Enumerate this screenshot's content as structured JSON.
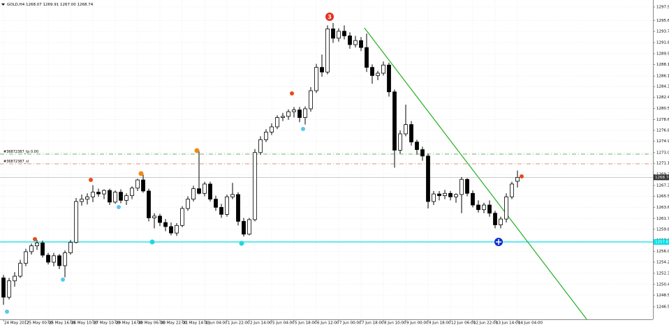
{
  "chart_data": {
    "type": "candlestick",
    "title": "GOLD,H4 1268.07 1269.91 1267.00 1268.74",
    "categories": [
      "24 May 2017",
      null,
      null,
      null,
      "25 May 00:00",
      null,
      null,
      null,
      "25 May 16:00",
      null,
      null,
      null,
      "26 May 10:00",
      null,
      null,
      null,
      "27 May 10:00",
      null,
      null,
      null,
      "29 May 14:00",
      null,
      null,
      null,
      "30 May 06:00",
      null,
      null,
      null,
      "30 May 22:00",
      null,
      null,
      null,
      "31 May 14:00",
      null,
      null,
      null,
      "1 Jun 04:00",
      null,
      null,
      null,
      "1 Jun 22:00",
      null,
      null,
      null,
      "2 Jun 14:00",
      null,
      null,
      null,
      "5 Jun 04:00",
      null,
      null,
      null,
      "5 Jun 18:00",
      null,
      null,
      null,
      "6 Jun 12:00",
      null,
      null,
      null,
      "7 Jun 00:00",
      null,
      null,
      null,
      "7 Jun 18:00",
      null,
      null,
      null,
      "8 Jun 10:00",
      null,
      null,
      null,
      "9 Jun 00:00",
      null,
      null,
      null,
      "9 Jun 18:00",
      null,
      null,
      null,
      "12 Jun 06:00",
      null,
      null,
      null,
      "12 Jun 22:00",
      null,
      null,
      null,
      "13 Jun 14:00",
      null,
      null,
      null,
      "14 Jun 04:00"
    ],
    "values": [
      [
        1251.5,
        1252.0,
        1246.9,
        1248.2
      ],
      [
        1248.2,
        1251.5,
        1247.8,
        1251.0
      ],
      [
        1251.0,
        1252.5,
        1250.0,
        1251.8
      ],
      [
        1251.8,
        1254.6,
        1251.5,
        1254.0
      ],
      [
        1254.0,
        1256.5,
        1253.5,
        1256.0
      ],
      [
        1256.0,
        1257.4,
        1255.5,
        1257.0
      ],
      [
        1257.0,
        1258.0,
        1256.3,
        1257.5
      ],
      [
        1257.5,
        1257.9,
        1255.0,
        1255.4
      ],
      [
        1255.4,
        1255.8,
        1253.8,
        1254.2
      ],
      [
        1254.2,
        1255.8,
        1253.5,
        1255.3
      ],
      [
        1255.3,
        1255.6,
        1253.0,
        1253.6
      ],
      [
        1253.6,
        1256.2,
        1251.6,
        1255.8
      ],
      [
        1255.8,
        1258.0,
        1255.5,
        1257.6
      ],
      [
        1257.6,
        1265.2,
        1257.4,
        1264.6
      ],
      [
        1264.6,
        1265.8,
        1263.9,
        1265.0
      ],
      [
        1265.0,
        1266.0,
        1264.1,
        1265.4
      ],
      [
        1265.4,
        1267.4,
        1264.5,
        1266.2
      ],
      [
        1266.2,
        1266.8,
        1265.4,
        1265.9
      ],
      [
        1265.9,
        1266.7,
        1265.0,
        1266.5
      ],
      [
        1266.5,
        1266.8,
        1264.0,
        1264.5
      ],
      [
        1264.5,
        1266.5,
        1264.2,
        1266.2
      ],
      [
        1266.2,
        1266.7,
        1264.3,
        1264.8
      ],
      [
        1264.8,
        1266.0,
        1264.0,
        1265.6
      ],
      [
        1265.6,
        1267.2,
        1265.0,
        1266.9
      ],
      [
        1266.9,
        1268.5,
        1266.4,
        1268.3
      ],
      [
        1268.3,
        1269.2,
        1266.1,
        1266.4
      ],
      [
        1266.4,
        1266.8,
        1261.2,
        1261.8
      ],
      [
        1261.8,
        1262.6,
        1260.0,
        1262.1
      ],
      [
        1262.1,
        1262.5,
        1260.4,
        1261.0
      ],
      [
        1261.0,
        1261.6,
        1259.5,
        1260.3
      ],
      [
        1260.3,
        1261.0,
        1258.8,
        1259.2
      ],
      [
        1259.2,
        1260.9,
        1258.7,
        1260.5
      ],
      [
        1260.5,
        1263.8,
        1260.2,
        1263.4
      ],
      [
        1263.4,
        1265.5,
        1263.0,
        1265.0
      ],
      [
        1265.0,
        1267.3,
        1264.6,
        1266.8
      ],
      [
        1266.8,
        1273.3,
        1265.8,
        1266.0
      ],
      [
        1266.0,
        1268.0,
        1265.5,
        1267.6
      ],
      [
        1267.6,
        1268.0,
        1264.6,
        1265.0
      ],
      [
        1265.0,
        1265.6,
        1263.0,
        1263.6
      ],
      [
        1263.6,
        1264.2,
        1261.8,
        1262.4
      ],
      [
        1262.4,
        1265.8,
        1262.0,
        1265.4
      ],
      [
        1265.4,
        1267.8,
        1265.0,
        1265.8
      ],
      [
        1265.8,
        1266.2,
        1260.5,
        1261.2
      ],
      [
        1261.2,
        1261.8,
        1258.6,
        1259.0
      ],
      [
        1259.0,
        1261.8,
        1258.8,
        1261.5
      ],
      [
        1261.5,
        1273.6,
        1261.2,
        1273.0
      ],
      [
        1273.0,
        1275.8,
        1272.6,
        1275.2
      ],
      [
        1275.2,
        1277.0,
        1274.8,
        1276.5
      ],
      [
        1276.5,
        1278.0,
        1276.0,
        1277.4
      ],
      [
        1277.4,
        1279.4,
        1277.0,
        1279.0
      ],
      [
        1279.0,
        1279.8,
        1278.4,
        1279.2
      ],
      [
        1279.2,
        1280.4,
        1278.6,
        1280.0
      ],
      [
        1280.0,
        1280.8,
        1279.0,
        1280.3
      ],
      [
        1280.3,
        1280.8,
        1278.2,
        1279.0
      ],
      [
        1279.0,
        1280.9,
        1277.8,
        1280.5
      ],
      [
        1280.5,
        1284.2,
        1280.0,
        1283.6
      ],
      [
        1283.6,
        1288.2,
        1283.2,
        1287.6
      ],
      [
        1287.6,
        1289.8,
        1286.0,
        1286.8
      ],
      [
        1286.8,
        1294.8,
        1286.4,
        1294.2
      ],
      [
        1294.2,
        1295.2,
        1291.8,
        1292.6
      ],
      [
        1292.6,
        1294.3,
        1292.0,
        1293.8
      ],
      [
        1293.8,
        1294.8,
        1292.4,
        1293.0
      ],
      [
        1293.0,
        1293.6,
        1290.8,
        1291.5
      ],
      [
        1291.5,
        1293.0,
        1291.0,
        1292.2
      ],
      [
        1292.2,
        1292.8,
        1290.4,
        1291.0
      ],
      [
        1291.0,
        1293.4,
        1286.8,
        1287.6
      ],
      [
        1287.6,
        1288.1,
        1284.8,
        1286.2
      ],
      [
        1286.2,
        1287.0,
        1285.4,
        1286.6
      ],
      [
        1286.6,
        1288.6,
        1286.2,
        1288.0
      ],
      [
        1288.0,
        1288.4,
        1282.6,
        1283.4
      ],
      [
        1283.4,
        1283.8,
        1270.4,
        1273.4
      ],
      [
        1273.4,
        1276.8,
        1272.8,
        1276.2
      ],
      [
        1276.2,
        1281.2,
        1275.8,
        1277.8
      ],
      [
        1277.8,
        1278.4,
        1274.2,
        1274.8
      ],
      [
        1274.8,
        1275.2,
        1272.6,
        1273.5
      ],
      [
        1273.5,
        1274.0,
        1271.6,
        1272.4
      ],
      [
        1272.4,
        1272.8,
        1263.4,
        1264.6
      ],
      [
        1264.6,
        1266.4,
        1264.0,
        1265.9
      ],
      [
        1265.9,
        1266.4,
        1264.8,
        1265.6
      ],
      [
        1265.6,
        1266.6,
        1265.0,
        1266.0
      ],
      [
        1266.0,
        1266.4,
        1264.8,
        1265.4
      ],
      [
        1265.4,
        1266.0,
        1264.4,
        1265.8
      ],
      [
        1265.8,
        1268.8,
        1262.6,
        1268.4
      ],
      [
        1268.4,
        1268.6,
        1265.5,
        1266.0
      ],
      [
        1266.0,
        1266.5,
        1263.6,
        1264.0
      ],
      [
        1264.0,
        1264.8,
        1262.7,
        1263.2
      ],
      [
        1263.2,
        1264.4,
        1262.6,
        1264.0
      ],
      [
        1264.0,
        1264.8,
        1262.0,
        1262.6
      ],
      [
        1262.6,
        1263.0,
        1260.0,
        1260.6
      ],
      [
        1260.6,
        1262.0,
        1260.0,
        1261.6
      ],
      [
        1261.6,
        1266.0,
        1261.0,
        1265.4
      ],
      [
        1265.4,
        1268.0,
        1265.0,
        1267.6
      ],
      [
        1268.07,
        1269.91,
        1267.0,
        1268.74
      ]
    ],
    "ylim": [
      1244.4,
      1299.15
    ],
    "yticks": [
      {
        "value": 1297.95,
        "label": "1297.95"
      },
      1295.65,
      1293.75,
      1291.85,
      1289.95,
      {
        "value": 1288.1,
        "label": "1288.10"
      },
      {
        "value": 1286.1,
        "label": "1286.10"
      },
      {
        "value": 1284.3,
        "label": "1284.30"
      },
      1282.45,
      1280.55,
      1278.65,
      {
        "value": 1276.8,
        "label": "1276.80"
      },
      1274.95,
      {
        "value": 1273.0,
        "label": "1273.00"
      },
      1271.15,
      1269.25,
      1267.35,
      {
        "value": 1265.5,
        "label": "1265.50"
      },
      {
        "value": 1263.6,
        "label": "1263.60"
      },
      {
        "value": 1261.7,
        "label": "1261.70"
      },
      1259.85,
      1257.95,
      1256.05,
      {
        "value": 1254.2,
        "label": "1254.20"
      },
      {
        "value": 1252.3,
        "label": "1252.30"
      },
      {
        "value": 1250.4,
        "label": "1250.40"
      },
      1248.55,
      1246.55
    ],
    "grid": true,
    "up_color": "#ffffff",
    "down_color": "#000000",
    "levels": [
      {
        "label": "#36872387_tp 0.00",
        "value": 1272.73,
        "color": "#3a9a3a"
      },
      {
        "label": "#36872387_sl",
        "value": 1271.06,
        "color": "#e07050"
      },
      {
        "value": 1257.67,
        "color": "#00e0e8"
      }
    ],
    "trendline": {
      "x": [
        64.6,
        104.4
      ],
      "y": [
        1294.37,
        1244.4
      ],
      "color": "#22b022"
    },
    "marker_label": "3"
  }
}
